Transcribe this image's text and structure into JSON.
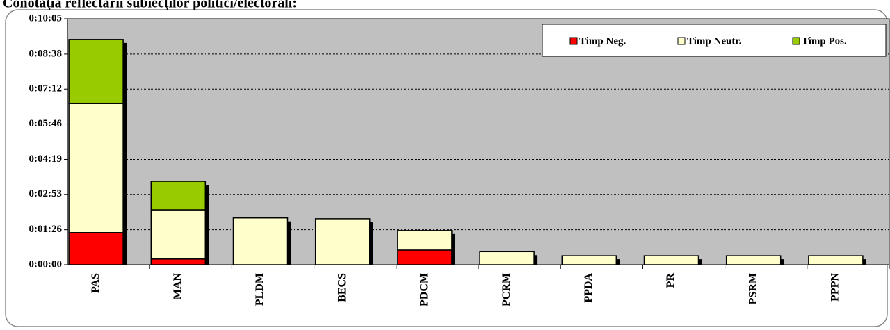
{
  "chart_data": {
    "type": "stacked_bar",
    "title": "Conotaţia reflectării subiecţilor politici/electorali:",
    "categories": [
      "PAS",
      "MAN",
      "PLDM",
      "BECS",
      "PDCM",
      "PCRM",
      "PPDA",
      "PR",
      "PSRM",
      "PPPN"
    ],
    "series": [
      {
        "name": "Timp Neg.",
        "color": "#ff0000",
        "values": [
          79,
          14,
          0,
          0,
          36,
          0,
          0,
          0,
          0,
          0
        ]
      },
      {
        "name": "Timp Neutr.",
        "color": "#ffffcc",
        "values": [
          318,
          121,
          115,
          113,
          48,
          32,
          22,
          22,
          22,
          22
        ]
      },
      {
        "name": "Timp Pos.",
        "color": "#99cc00",
        "values": [
          157,
          70,
          0,
          0,
          0,
          0,
          0,
          0,
          0,
          0
        ]
      }
    ],
    "ylim": [
      0,
      605
    ],
    "yticks": [
      {
        "value": 0,
        "label": "0:00:00"
      },
      {
        "value": 86,
        "label": "0:01:26"
      },
      {
        "value": 173,
        "label": "0:02:53"
      },
      {
        "value": 259,
        "label": "0:04:19"
      },
      {
        "value": 346,
        "label": "0:05:46"
      },
      {
        "value": 432,
        "label": "0:07:12"
      },
      {
        "value": 518,
        "label": "0:08:38"
      },
      {
        "value": 605,
        "label": "0:10:05"
      }
    ],
    "grid": true,
    "legend": "top-right",
    "background": "#c0c0c0"
  }
}
